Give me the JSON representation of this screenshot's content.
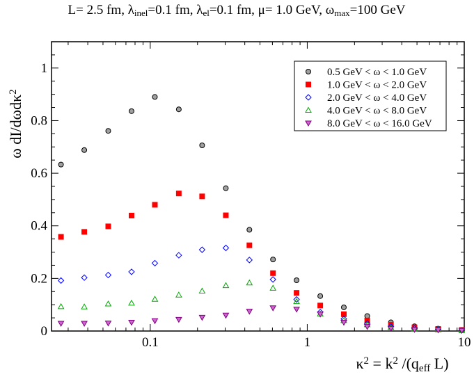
{
  "chart_data": {
    "type": "scatter",
    "title": {
      "segments": [
        {
          "t": "L= 2.5 fm, λ"
        },
        {
          "t": "inel",
          "sub": true
        },
        {
          "t": "=0.1 fm, λ"
        },
        {
          "t": "el",
          "sub": true
        },
        {
          "t": "=0.1 fm, μ= 1.0 GeV, ω"
        },
        {
          "t": "max",
          "sub": true
        },
        {
          "t": "=100 GeV"
        }
      ]
    },
    "xlabel": {
      "segments": [
        {
          "t": "κ"
        },
        {
          "t": "2",
          "sup": true
        },
        {
          "t": " = k"
        },
        {
          "t": "2",
          "sup": true
        },
        {
          "t": " /(q"
        },
        {
          "t": "eff",
          "sub": true
        },
        {
          "t": " L)"
        }
      ]
    },
    "ylabel": {
      "segments": [
        {
          "t": "ω dI/dωdκ"
        },
        {
          "t": "2",
          "sup": true
        }
      ]
    },
    "x_scale": "log",
    "xlim": [
      0.0235,
      10
    ],
    "ylim": [
      0,
      1.1
    ],
    "x_ticks": [
      {
        "value": 0.1,
        "label": "0.1"
      },
      {
        "value": 1,
        "label": "1"
      },
      {
        "value": 10,
        "label": "10"
      }
    ],
    "y_ticks": [
      {
        "value": 0,
        "label": "0"
      },
      {
        "value": 0.2,
        "label": "0.2"
      },
      {
        "value": 0.4,
        "label": "0.4"
      },
      {
        "value": 0.6,
        "label": "0.6"
      },
      {
        "value": 0.8,
        "label": "0.8"
      },
      {
        "value": 1,
        "label": "1"
      }
    ],
    "legend_position": "top-right",
    "x": [
      0.027,
      0.038,
      0.054,
      0.076,
      0.107,
      0.152,
      0.214,
      0.303,
      0.428,
      0.605,
      0.855,
      1.21,
      1.71,
      2.41,
      3.41,
      4.82,
      6.82,
      9.64
    ],
    "series": [
      {
        "name": "0.5 GeV < ω < 1.0 GeV",
        "marker": "circle",
        "color": "#000000",
        "fill": "#a0a0a0",
        "values": [
          0.633,
          0.688,
          0.761,
          0.836,
          0.89,
          0.843,
          0.706,
          0.543,
          0.385,
          0.272,
          0.193,
          0.133,
          0.09,
          0.057,
          0.033,
          0.018,
          0.009,
          0.004
        ]
      },
      {
        "name": "1.0 GeV < ω < 2.0 GeV",
        "marker": "square",
        "color": "#ff0000",
        "fill": "#ff0000",
        "values": [
          0.358,
          0.377,
          0.398,
          0.439,
          0.48,
          0.523,
          0.512,
          0.44,
          0.326,
          0.22,
          0.145,
          0.097,
          0.064,
          0.04,
          0.024,
          0.014,
          0.008,
          0.004
        ]
      },
      {
        "name": "2.0 GeV < ω < 4.0 GeV",
        "marker": "diamond",
        "color": "#0000ff",
        "fill": "none",
        "values": [
          0.192,
          0.203,
          0.213,
          0.225,
          0.258,
          0.288,
          0.309,
          0.316,
          0.27,
          0.196,
          0.12,
          0.072,
          0.046,
          0.029,
          0.017,
          0.01,
          0.006,
          0.003
        ]
      },
      {
        "name": "4.0 GeV < ω < 8.0 GeV",
        "marker": "triangle-up",
        "color": "#00aa00",
        "fill": "none",
        "values": [
          0.093,
          0.092,
          0.103,
          0.106,
          0.121,
          0.137,
          0.152,
          0.173,
          0.183,
          0.163,
          0.112,
          0.065,
          0.04,
          0.024,
          0.014,
          0.008,
          0.005,
          0.002
        ]
      },
      {
        "name": "8.0 GeV < ω < 16.0 GeV",
        "marker": "triangle-down",
        "color": "#800080",
        "fill": "#cc66cc",
        "values": [
          0.029,
          0.029,
          0.03,
          0.033,
          0.039,
          0.044,
          0.052,
          0.06,
          0.075,
          0.088,
          0.083,
          0.064,
          0.033,
          0.017,
          0.01,
          0.006,
          0.004,
          0.002
        ]
      }
    ]
  }
}
